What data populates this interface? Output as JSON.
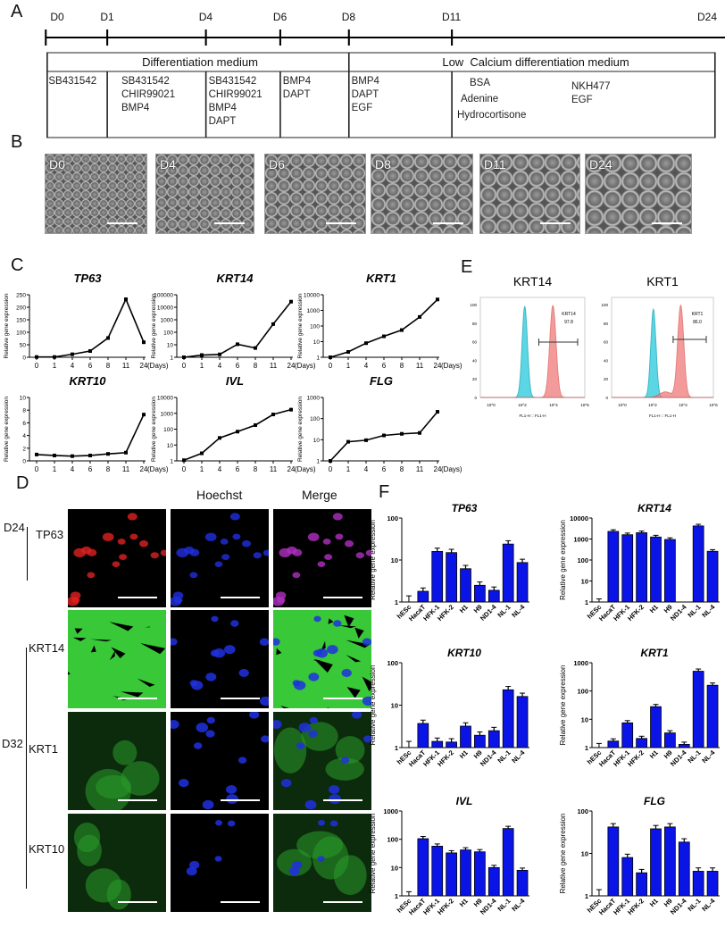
{
  "panels": {
    "a": "A",
    "b": "B",
    "c": "C",
    "d": "D",
    "e": "E",
    "f": "F"
  },
  "timeline": {
    "days": [
      "D0",
      "D1",
      "D4",
      "D6",
      "D8",
      "D11",
      "D24"
    ],
    "media": [
      "Differentiation medium",
      "Low  Calcium differentiation medium"
    ],
    "cells": [
      [
        "SB431542"
      ],
      [
        "SB431542",
        "CHIR99021",
        "BMP4"
      ],
      [
        "SB431542",
        "CHIR99021",
        "BMP4",
        "DAPT"
      ],
      [
        "BMP4",
        "DAPT"
      ],
      [
        "BMP4",
        "DAPT",
        "EGF"
      ],
      [
        "BSA",
        "Adenine",
        "Hydrocortisone"
      ],
      [
        "NKH477",
        "EGF"
      ]
    ]
  },
  "micrographs": [
    "D0",
    "D4",
    "D6",
    "D8",
    "D11",
    "D24"
  ],
  "immuno": {
    "col_headers": [
      "",
      "Hoechst",
      "Merge"
    ],
    "groups": [
      "D24",
      "D32"
    ],
    "rows": [
      "TP63",
      "KRT14",
      "KRT1",
      "KRT10"
    ]
  },
  "flow": {
    "x_label": "FL1-H :: FL1-H",
    "y_ticks": [
      0,
      20,
      40,
      60,
      80,
      100
    ],
    "x_ticks": [
      "10^0",
      "10^2",
      "10^4",
      "10^6"
    ],
    "colors": {
      "control": "#3fd0e0",
      "stained": "#f07a7a"
    },
    "plots": [
      {
        "title": "KRT14",
        "gate_name": "KRT14",
        "gate_value": "97.8",
        "control_peak": 2.5,
        "stained_peak": 4.3
      },
      {
        "title": "KRT1",
        "gate_name": "KRT1",
        "gate_value": "86.0",
        "control_peak": 2.4,
        "stained_peak": 4.2
      }
    ]
  },
  "chart_data": [
    {
      "type": "line",
      "title": "TP63",
      "ylabel": "Relative gene expression",
      "xlabel": "(Days)",
      "x": [
        "0",
        "1",
        "4",
        "6",
        "8",
        "11",
        "24"
      ],
      "scale": "linear",
      "ylim": [
        0,
        250
      ],
      "yticks": [
        0,
        50,
        100,
        150,
        200,
        250
      ],
      "values": [
        1,
        1,
        12,
        25,
        77,
        232,
        60
      ]
    },
    {
      "type": "line",
      "title": "KRT14",
      "ylabel": "Relative gene expression",
      "xlabel": "(Days)",
      "x": [
        "0",
        "1",
        "4",
        "6",
        "8",
        "11",
        "24"
      ],
      "scale": "log",
      "ylim": [
        1,
        100000
      ],
      "yticks": [
        1,
        10,
        100,
        1000,
        10000,
        100000
      ],
      "values": [
        1,
        1.5,
        1.7,
        11,
        5.5,
        450,
        28000
      ]
    },
    {
      "type": "line",
      "title": "KRT1",
      "ylabel": "Relative gene expression",
      "xlabel": "(Days)",
      "x": [
        "0",
        "1",
        "4",
        "6",
        "8",
        "11",
        "24"
      ],
      "scale": "log",
      "ylim": [
        1,
        10000
      ],
      "yticks": [
        1,
        10,
        100,
        1000,
        10000
      ],
      "values": [
        1,
        2.2,
        8,
        22,
        55,
        380,
        5000
      ]
    },
    {
      "type": "line",
      "title": "KRT10",
      "ylabel": "Relative gene expression",
      "xlabel": "(Days)",
      "x": [
        "0",
        "1",
        "4",
        "6",
        "8",
        "11",
        "24"
      ],
      "scale": "linear",
      "ylim": [
        0,
        10
      ],
      "yticks": [
        0,
        2,
        4,
        6,
        8,
        10
      ],
      "values": [
        1,
        0.85,
        0.75,
        0.85,
        1.1,
        1.3,
        7.3
      ]
    },
    {
      "type": "line",
      "title": "IVL",
      "ylabel": "Relative gene expression",
      "xlabel": "(Days)",
      "x": [
        "0",
        "1",
        "4",
        "6",
        "8",
        "11",
        "24"
      ],
      "scale": "log",
      "ylim": [
        1,
        10000
      ],
      "yticks": [
        1,
        10,
        100,
        1000,
        10000
      ],
      "values": [
        1.1,
        3,
        28,
        70,
        180,
        850,
        1700
      ]
    },
    {
      "type": "line",
      "title": "FLG",
      "ylabel": "Relative gene expression",
      "xlabel": "(Days)",
      "x": [
        "0",
        "1",
        "4",
        "6",
        "8",
        "11",
        "24"
      ],
      "scale": "log",
      "ylim": [
        1,
        1000
      ],
      "yticks": [
        1,
        10,
        100,
        1000
      ],
      "values": [
        1,
        8,
        9.5,
        16,
        19,
        21,
        210
      ]
    },
    {
      "type": "bar",
      "title": "TP63",
      "ylabel": "Relative gene expression",
      "categories": [
        "hESc",
        "HacaT",
        "HFK-1",
        "HFK-2",
        "H1",
        "H9",
        "ND1-4",
        "NL-1",
        "NL-4"
      ],
      "scale": "log",
      "ylim": [
        1,
        100
      ],
      "yticks": [
        1,
        10,
        100
      ],
      "values": [
        1,
        1.8,
        16,
        15,
        6.2,
        2.5,
        1.9,
        24,
        8.7
      ],
      "color": "#0a14e6"
    },
    {
      "type": "bar",
      "title": "KRT14",
      "ylabel": "Relative gene expression",
      "categories": [
        "hESc",
        "HacaT",
        "HFK-1",
        "HFK-2",
        "H1",
        "H9",
        "ND1-4",
        "NL-1",
        "NL-4"
      ],
      "scale": "log",
      "ylim": [
        1,
        10000
      ],
      "yticks": [
        1,
        10,
        100,
        1000,
        10000
      ],
      "values": [
        1,
        2300,
        1600,
        2000,
        1250,
        950,
        1,
        4200,
        260
      ],
      "color": "#0a14e6"
    },
    {
      "type": "bar",
      "title": "KRT10",
      "ylabel": "Relative gene expression",
      "categories": [
        "hESc",
        "HacaT",
        "HFK-1",
        "HFK-2",
        "H1",
        "H9",
        "ND1-4",
        "NL-1",
        "NL-4"
      ],
      "scale": "log",
      "ylim": [
        1,
        100
      ],
      "yticks": [
        1,
        10,
        100
      ],
      "values": [
        1,
        3.7,
        1.4,
        1.35,
        3.2,
        1.95,
        2.5,
        23,
        16
      ],
      "color": "#0a14e6"
    },
    {
      "type": "bar",
      "title": "KRT1",
      "ylabel": "Relative gene expression",
      "categories": [
        "hESc",
        "HacaT",
        "HFK-1",
        "HFK-2",
        "H1",
        "H9",
        "ND1-4",
        "NL-1",
        "NL-4"
      ],
      "scale": "log",
      "ylim": [
        1,
        1000
      ],
      "yticks": [
        1,
        10,
        100,
        1000
      ],
      "values": [
        1,
        1.7,
        7.5,
        2.1,
        28,
        3.3,
        1.3,
        500,
        160
      ],
      "color": "#0a14e6"
    },
    {
      "type": "bar",
      "title": "IVL",
      "ylabel": "Relative gene expression",
      "categories": [
        "hESc",
        "HacaT",
        "HFK-1",
        "HFK-2",
        "H1",
        "H9",
        "ND1-4",
        "NL-1",
        "NL-4"
      ],
      "scale": "log",
      "ylim": [
        1,
        1000
      ],
      "yticks": [
        1,
        10,
        100,
        1000
      ],
      "values": [
        1,
        105,
        57,
        33,
        42,
        36,
        10,
        240,
        8
      ],
      "color": "#0a14e6"
    },
    {
      "type": "bar",
      "title": "FLG",
      "ylabel": "Relative gene expression",
      "categories": [
        "hESc",
        "HacaT",
        "HFK-1",
        "HFK-2",
        "H1",
        "H9",
        "ND1-4",
        "NL-1",
        "NL-4"
      ],
      "scale": "log",
      "ylim": [
        1,
        100
      ],
      "yticks": [
        1,
        10,
        100
      ],
      "values": [
        1,
        42,
        8,
        3.5,
        38,
        42,
        18.5,
        3.8,
        3.8
      ],
      "color": "#0a14e6"
    }
  ]
}
